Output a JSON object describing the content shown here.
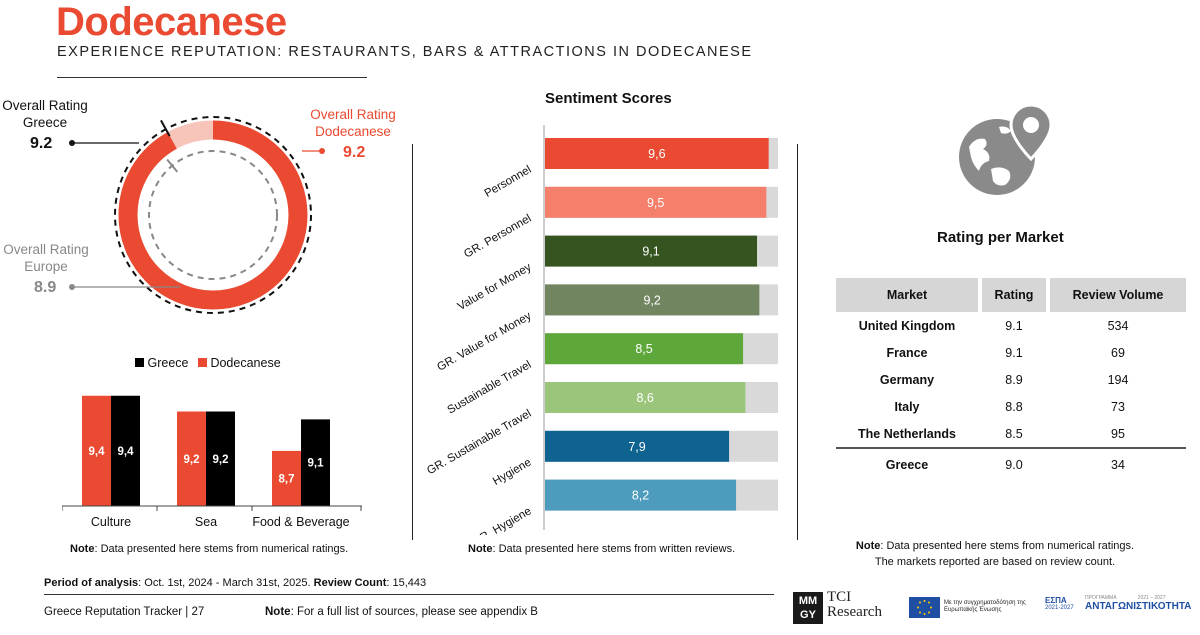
{
  "header": {
    "title": "Dodecanese",
    "subtitle": "EXPERIENCE REPUTATION: RESTAURANTS, BARS & ATTRACTIONS IN DODECANESE"
  },
  "overall": {
    "greece_label_1": "Overall Rating",
    "greece_label_2": "Greece",
    "greece_value": "9.2",
    "dodecanese_label_1": "Overall Rating",
    "dodecanese_label_2": "Dodecanese",
    "dodecanese_value": "9.2",
    "europe_label_1": "Overall Rating",
    "europe_label_2": "Europe",
    "europe_value": "8.9",
    "colors": {
      "dodecanese": "#ea4a31",
      "greece": "#111111",
      "europe": "#888888",
      "remainder": "#f7c4ba"
    }
  },
  "chart_data": [
    {
      "type": "donut",
      "title": "",
      "scale_max": 10,
      "series": [
        {
          "name": "Overall Rating Dodecanese",
          "value": 9.2
        },
        {
          "name": "Overall Rating Greece",
          "value": 9.2
        },
        {
          "name": "Overall Rating Europe",
          "value": 8.9
        }
      ]
    },
    {
      "type": "bar",
      "title": "",
      "categories": [
        "Culture",
        "Sea",
        "Food & Beverage"
      ],
      "series": [
        {
          "name": "Greece",
          "color": "#000000",
          "values": [
            9.4,
            9.2,
            9.1
          ]
        },
        {
          "name": "Dodecanese",
          "color": "#ea4a31",
          "values": [
            9.4,
            9.2,
            8.7
          ]
        }
      ],
      "value_labels": {
        "Greece": [
          "9,4",
          "9,2",
          "9,1"
        ],
        "Dodecanese": [
          "9,4",
          "9,2",
          "8,7"
        ]
      },
      "legend": [
        "Greece",
        "Dodecanese"
      ],
      "legend_placement": "top",
      "ylim": [
        8.0,
        9.6
      ]
    },
    {
      "type": "bar",
      "orientation": "horizontal",
      "title": "Sentiment Scores",
      "categories": [
        "Personnel",
        "GR. Personnel",
        "Value for Money",
        "GR. Value for Money",
        "Sustainable Travel",
        "GR. Sustainable Travel",
        "Hygiene",
        "GR. Hygiene"
      ],
      "values": [
        9.6,
        9.5,
        9.1,
        9.2,
        8.5,
        8.6,
        7.9,
        8.2
      ],
      "value_labels": [
        "9,6",
        "9,5",
        "9,1",
        "9,2",
        "8,5",
        "8,6",
        "7,9",
        "8,2"
      ],
      "colors": [
        "#ea4a31",
        "#f47f6b",
        "#36541f",
        "#718660",
        "#5ea83b",
        "#9bc57a",
        "#0f6390",
        "#4d9bbd"
      ],
      "track_color": "#d9d9d9",
      "xlim": [
        0,
        10
      ]
    }
  ],
  "sentiment": {
    "title": "Sentiment Scores"
  },
  "notes": {
    "note_word": "Note",
    "left": ": Data presented here stems from numerical ratings.",
    "middle": ": Data presented here stems from written reviews.",
    "right_1": ": Data presented here stems from numerical ratings.",
    "right_2": "The markets reported are based on review count."
  },
  "market": {
    "title": "Rating per Market",
    "headers": [
      "Market",
      "Rating",
      "Review Volume"
    ],
    "rows": [
      [
        "United Kingdom",
        "9.1",
        "534"
      ],
      [
        "France",
        "9.1",
        "69"
      ],
      [
        "Germany",
        "8.9",
        "194"
      ],
      [
        "Italy",
        "8.8",
        "73"
      ],
      [
        "The Netherlands",
        "8.5",
        "95"
      ]
    ],
    "total": [
      "Greece",
      "9.0",
      "34"
    ]
  },
  "footer": {
    "period_label": "Period of analysis",
    "period_value": ": Oct. 1st, 2024 - March 31st, 2025.",
    "count_label": "Review Count",
    "count_value": ": 15,443",
    "tracker": "Greece Reputation Tracker |",
    "page": "27",
    "note_word": "Note",
    "note_text": ": For a full list of sources, please see appendix B",
    "mmgy": [
      "MM",
      "GY"
    ],
    "tci": [
      "TCI",
      "Research"
    ],
    "eu_text": "Με την συγχρηματοδότηση της Ευρωπαϊκής Ένωσης",
    "espa": "ΕΣΠΑ",
    "espa_years": "2021-2027",
    "program_small": "ΠΡΟΓΡΑΜΜΑ",
    "program_years": "2021 – 2027",
    "program": "ΑΝΤΑΓΩΝΙΣΤΙΚΟΤΗΤΑ"
  },
  "icons": {
    "globe": "globe-pin-icon"
  }
}
